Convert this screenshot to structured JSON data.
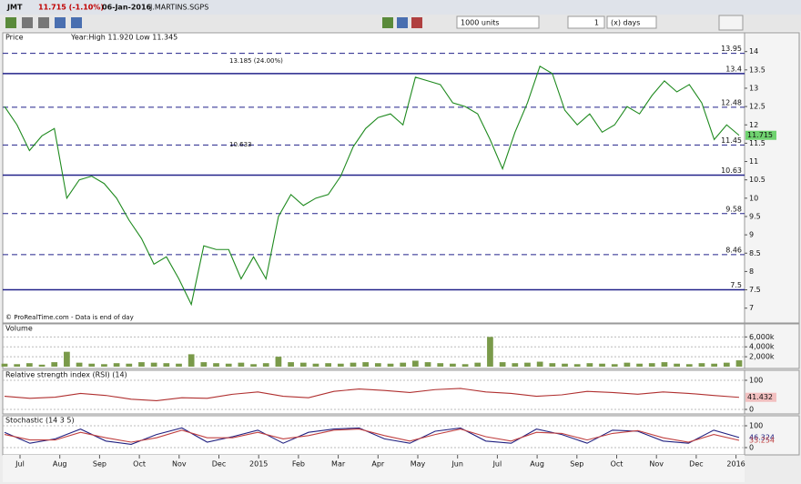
{
  "toolbar": {
    "symbol": "JMT",
    "change": "11.715 (-1.10%)",
    "date": "06-Jan-2016",
    "name": "J.MARTINS.SGPS",
    "units": "1000 units",
    "period_count": "1",
    "period": "(x) days"
  },
  "x_axis": {
    "labels": [
      "Jul",
      "Aug",
      "Sep",
      "Oct",
      "Nov",
      "Dec",
      "2015",
      "Feb",
      "Mar",
      "Apr",
      "May",
      "Jun",
      "Jul",
      "Aug",
      "Sep",
      "Oct",
      "Nov",
      "Dec",
      "2016"
    ]
  },
  "chart_data": [
    {
      "type": "line",
      "title": "Price",
      "subtitle": "Year:High 11.920 Low 11.345",
      "color": "#1f8a1f",
      "values": [
        12.5,
        12.0,
        11.3,
        11.7,
        11.9,
        10.0,
        10.5,
        10.6,
        10.4,
        10.0,
        9.4,
        8.9,
        8.2,
        8.4,
        7.8,
        7.1,
        8.7,
        8.6,
        8.6,
        7.8,
        8.4,
        7.8,
        9.5,
        10.1,
        9.8,
        10.0,
        10.1,
        10.6,
        11.4,
        11.9,
        12.2,
        12.3,
        12.0,
        13.3,
        13.2,
        13.1,
        12.6,
        12.5,
        12.3,
        11.6,
        10.8,
        11.8,
        12.6,
        13.6,
        13.4,
        12.4,
        12.0,
        12.3,
        11.8,
        12.0,
        12.5,
        12.3,
        12.8,
        13.2,
        12.9,
        13.1,
        12.6,
        11.6,
        12.0,
        11.715
      ],
      "ylim": [
        6.67,
        14.24
      ],
      "yticks": [
        7,
        7.5,
        8,
        8.5,
        9,
        9.5,
        10,
        10.5,
        11,
        11.5,
        12,
        12.5,
        13,
        13.5,
        14
      ],
      "levels": [
        {
          "value": 13.95,
          "style": "dashed"
        },
        {
          "value": 13.4,
          "style": "solid"
        },
        {
          "value": 12.48,
          "style": "dashed"
        },
        {
          "value": 11.45,
          "style": "dashed"
        },
        {
          "value": 10.63,
          "style": "solid"
        },
        {
          "value": 9.58,
          "style": "dashed"
        },
        {
          "value": 8.46,
          "style": "dashed"
        },
        {
          "value": 7.5,
          "style": "solid"
        }
      ],
      "last_value": 11.715,
      "annotations": [
        "13.185 (24.00%)",
        "10.633",
        "© ProRealTime.com - Data is end of day"
      ]
    },
    {
      "type": "bar",
      "title": "Volume",
      "color": "#7a9a4a",
      "values": [
        600,
        500,
        700,
        400,
        900,
        3000,
        800,
        600,
        500,
        700,
        600,
        900,
        800,
        700,
        600,
        2500,
        900,
        700,
        600,
        800,
        500,
        700,
        2000,
        900,
        800,
        600,
        700,
        600,
        800,
        900,
        700,
        600,
        800,
        1200,
        900,
        700,
        600,
        500,
        800,
        6000,
        900,
        700,
        800,
        1000,
        700,
        600,
        500,
        700,
        600,
        500,
        800,
        600,
        700,
        900,
        600,
        500,
        700,
        600,
        800,
        1275
      ],
      "ylim": [
        0,
        6800
      ],
      "yticks": [
        {
          "value": 2000,
          "label": "2,000k"
        },
        {
          "value": 4000,
          "label": "4,000k"
        },
        {
          "value": 6000,
          "label": "6,000k"
        }
      ]
    },
    {
      "type": "line",
      "title": "Relative strength index (RSI) (14)",
      "color": "#b03030",
      "values": [
        45,
        38,
        42,
        55,
        48,
        35,
        30,
        40,
        38,
        52,
        60,
        45,
        40,
        62,
        70,
        65,
        58,
        68,
        72,
        60,
        55,
        45,
        50,
        62,
        58,
        52,
        60,
        55,
        48,
        41.432
      ],
      "ylim": [
        0,
        100
      ],
      "yticks": [
        0,
        100
      ],
      "last_value": 41.432
    },
    {
      "type": "lines",
      "title": "Stochastic (14 3 5)",
      "series": [
        {
          "name": "K",
          "color": "#202080",
          "values": [
            70,
            20,
            40,
            85,
            30,
            15,
            60,
            90,
            25,
            50,
            80,
            20,
            70,
            85,
            90,
            40,
            20,
            75,
            90,
            30,
            20,
            85,
            60,
            20,
            80,
            75,
            30,
            20,
            80,
            46.324
          ]
        },
        {
          "name": "D",
          "color": "#c04040",
          "values": [
            60,
            35,
            35,
            70,
            45,
            25,
            45,
            80,
            45,
            45,
            70,
            40,
            55,
            80,
            85,
            55,
            30,
            60,
            85,
            50,
            30,
            70,
            65,
            35,
            65,
            78,
            45,
            25,
            60,
            33.254
          ]
        }
      ],
      "ylim": [
        0,
        100
      ],
      "yticks": [
        0,
        100
      ]
    }
  ]
}
